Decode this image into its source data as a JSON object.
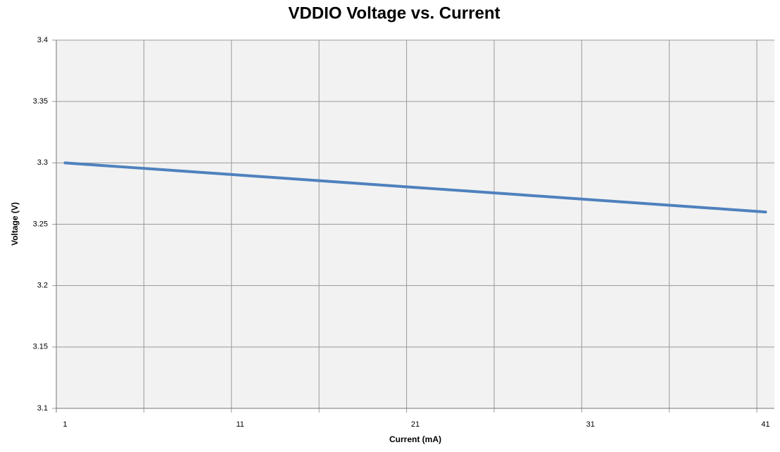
{
  "chart_data": {
    "type": "line",
    "title": "VDDIO Voltage vs. Current",
    "x_label": "Current (mA)",
    "y_label": "Voltage (V)",
    "categories": [
      "1",
      null,
      null,
      null,
      null,
      null,
      null,
      null,
      null,
      null,
      "11",
      null,
      null,
      null,
      null,
      null,
      null,
      null,
      null,
      null,
      "21",
      null,
      null,
      null,
      null,
      null,
      null,
      null,
      null,
      null,
      "31",
      null,
      null,
      null,
      null,
      null,
      null,
      null,
      null,
      null,
      "41"
    ],
    "series": [
      {
        "name": "VDDIO",
        "color": "#4f81bd",
        "values": [
          3.3,
          3.299,
          3.298,
          3.297,
          3.296,
          3.295,
          3.294,
          3.293,
          3.292,
          3.291,
          3.29,
          3.289,
          3.288,
          3.287,
          3.286,
          3.285,
          3.284,
          3.283,
          3.282,
          3.281,
          3.28,
          3.279,
          3.278,
          3.277,
          3.276,
          3.275,
          3.274,
          3.273,
          3.272,
          3.271,
          3.27,
          3.269,
          3.268,
          3.267,
          3.266,
          3.265,
          3.264,
          3.263,
          3.262,
          3.261,
          3.26
        ]
      }
    ],
    "ylim": [
      3.1,
      3.4
    ],
    "yticks": [
      3.1,
      3.15,
      3.2,
      3.25,
      3.3,
      3.35,
      3.4
    ],
    "x_tick_interval": 5,
    "grid": true
  }
}
